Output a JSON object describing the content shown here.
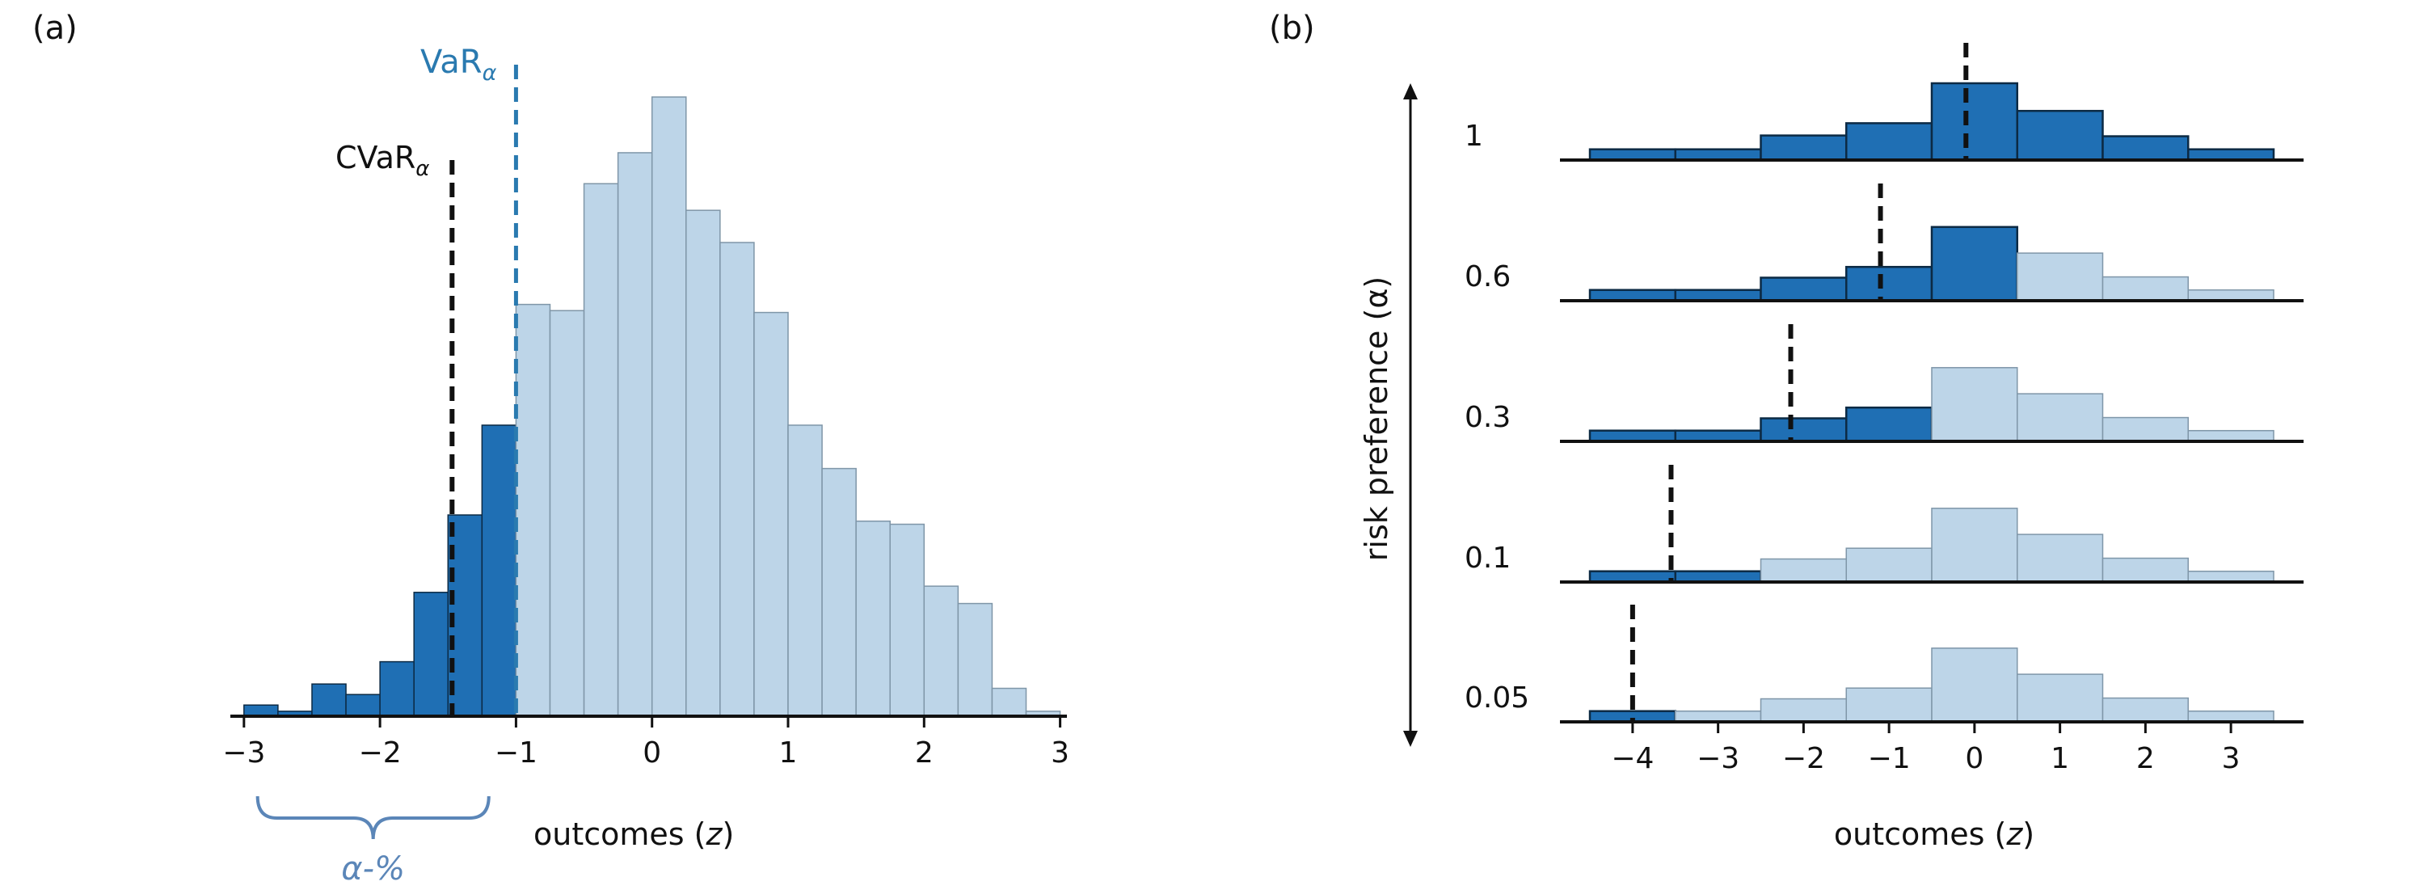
{
  "colors": {
    "dark": "#1f6fb4",
    "light": "#bdd5e8",
    "light_stroke": "#7f96a8",
    "dark_stroke": "#0c2a44",
    "var_line": "#2a7ab0",
    "cvar_line": "#111111",
    "bracket": "#5b86b8",
    "axis": "#111111"
  },
  "panel_a": {
    "label": "(a)",
    "var_label_main": "VaR",
    "var_label_sub": "α",
    "cvar_label_main": "CVaR",
    "cvar_label_sub": "α",
    "alpha_label": "α-%",
    "xlabel_text": "outcomes (",
    "xlabel_var": "z",
    "xlabel_close": ")",
    "tick_texts": [
      "−3",
      "−2",
      "−1",
      "0",
      "1",
      "2",
      "3"
    ]
  },
  "panel_b": {
    "label": "(b)",
    "ylabel": "risk preference (α)",
    "xlabel_text": "outcomes (",
    "xlabel_var": "z",
    "xlabel_close": ")",
    "tick_texts": [
      "−4",
      "−3",
      "−2",
      "−1",
      "0",
      "1",
      "2",
      "3"
    ],
    "row_labels": [
      "1",
      "0.6",
      "0.3",
      "0.1",
      "0.05"
    ]
  },
  "chart_data": [
    {
      "type": "bar",
      "title": "(a)",
      "xlabel": "outcomes (z)",
      "ylabel": "",
      "xlim": [
        -3.1,
        3.05
      ],
      "ylim": [
        0,
        1
      ],
      "xticks": [
        -3,
        -2,
        -1,
        0,
        1,
        2,
        3
      ],
      "bin_width": 0.25,
      "bin_starts": [
        -3.0,
        -2.75,
        -2.5,
        -2.25,
        -2.0,
        -1.75,
        -1.5,
        -1.25,
        -1.0,
        -0.75,
        -0.5,
        -0.25,
        0.0,
        0.25,
        0.5,
        0.75,
        1.0,
        1.25,
        1.5,
        1.75,
        2.0,
        2.25,
        2.5,
        2.75
      ],
      "values": [
        0.018,
        0.008,
        0.052,
        0.035,
        0.088,
        0.2,
        0.325,
        0.47,
        0.665,
        0.655,
        0.86,
        0.91,
        1.0,
        0.817,
        0.765,
        0.652,
        0.47,
        0.4,
        0.315,
        0.31,
        0.21,
        0.182,
        0.045,
        0.008
      ],
      "tail_highlight_below": -1.0,
      "vlines": [
        {
          "name": "VaR_alpha",
          "x": -1.0,
          "style": "dashed"
        },
        {
          "name": "CVaR_alpha",
          "x": -1.47,
          "style": "dashed"
        }
      ],
      "bracket": {
        "from": -2.9,
        "to": -1.2,
        "label": "α-%"
      }
    },
    {
      "type": "bar",
      "title": "(b)",
      "xlabel": "outcomes (z)",
      "ylabel": "risk preference (α)",
      "xlim": [
        -4.85,
        3.85
      ],
      "xticks": [
        -4,
        -3,
        -2,
        -1,
        0,
        1,
        2,
        3
      ],
      "bin_edges": [
        -4.5,
        -3.5,
        -2.5,
        -1.5,
        -0.5,
        0.5,
        1.5,
        2.5,
        3.5
      ],
      "series": [
        {
          "name": "1",
          "values": [
            0.14,
            0.14,
            0.32,
            0.48,
            1.0,
            0.64,
            0.31,
            0.14
          ],
          "dark_bins": 8,
          "cvar": -0.1
        },
        {
          "name": "0.6",
          "values": [
            0.14,
            0.14,
            0.3,
            0.44,
            0.96,
            0.62,
            0.31,
            0.14
          ],
          "dark_bins": 5,
          "cvar": -1.1
        },
        {
          "name": "0.3",
          "values": [
            0.14,
            0.14,
            0.3,
            0.44,
            0.96,
            0.62,
            0.31,
            0.14
          ],
          "dark_bins": 4,
          "cvar": -2.15
        },
        {
          "name": "0.1",
          "values": [
            0.14,
            0.14,
            0.3,
            0.44,
            0.96,
            0.62,
            0.31,
            0.14
          ],
          "dark_bins": 2,
          "cvar": -3.55
        },
        {
          "name": "0.05",
          "values": [
            0.14,
            0.14,
            0.3,
            0.44,
            0.96,
            0.62,
            0.31,
            0.14
          ],
          "dark_bins": 1,
          "cvar": -4.0
        }
      ]
    }
  ]
}
